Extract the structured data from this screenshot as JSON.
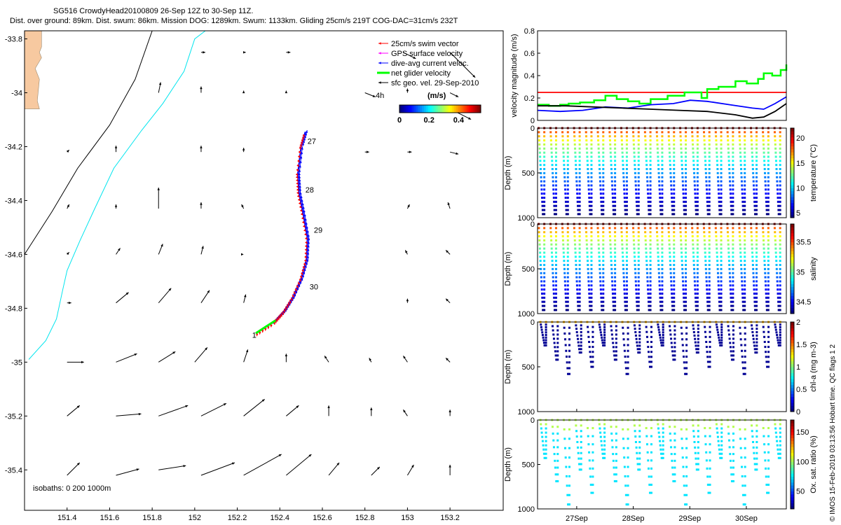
{
  "header": {
    "title_line1": "SG516 CrowdyHead20100809 26-Sep 12Z to 30-Sep 11Z.",
    "title_line2": "Dist. over ground: 89km. Dist. swum: 86km. Mission DOG: 1289km. Swum: 1133km. Gliding 25cm/s 219T COG-DAC=31cm/s 232T"
  },
  "credit": "© IMOS 15-Feb-2019 03:13:56 Hobart time. QC flags 1 2",
  "colors": {
    "land": "#f7c9a0",
    "isobath200": "#00e5ee",
    "isobath1000": "#000000",
    "swim": "#ff0000",
    "gps": "#ff00ff",
    "dac": "#0000ff",
    "net": "#00ff00",
    "geo": "#000000",
    "speed_threshold": "#ff0000"
  },
  "chart_data": [
    {
      "type": "scatter",
      "title": "",
      "xlabel": "",
      "ylabel": "",
      "xlim": [
        151.2,
        153.45
      ],
      "ylim": [
        -35.55,
        -33.77
      ],
      "xticks": [
        "151.4",
        "151.6",
        "151.8",
        "152",
        "152.2",
        "152.4",
        "152.6",
        "152.8",
        "153",
        "153.2"
      ],
      "yticks": [
        "-33.8",
        "-34",
        "-34.2",
        "-34.4",
        "-34.6",
        "-34.8",
        "-35",
        "-35.2",
        "-35.4"
      ],
      "legend": [
        {
          "label": "25cm/s swim vector",
          "color": "#ff0000"
        },
        {
          "label": "GPS surface velocity",
          "color": "#ff00ff"
        },
        {
          "label": "dive-avg current veloc.",
          "color": "#0000ff"
        },
        {
          "label": "net glider velocity",
          "color": "#00ff00"
        },
        {
          "label": "sfc geo. vel. 29-Sep-2010",
          "color": "#000000"
        }
      ],
      "colorbar": {
        "label": "(m/s)",
        "ticks": [
          "0",
          "0.2",
          "0.4"
        ],
        "range": [
          0,
          0.55
        ]
      },
      "isobath_note": "isobaths: 0   200  1000m",
      "time_label": "4h",
      "track_day_labels": [
        {
          "text": "1",
          "lon": 152.27,
          "lat": -34.91
        },
        {
          "text": "27",
          "lon": 152.53,
          "lat": -34.19
        },
        {
          "text": "28",
          "lon": 152.52,
          "lat": -34.37
        },
        {
          "text": "29",
          "lon": 152.56,
          "lat": -34.52
        },
        {
          "text": "30",
          "lon": 152.54,
          "lat": -34.73
        }
      ],
      "track": [
        [
          152.3,
          -34.885
        ],
        [
          152.38,
          -34.845
        ],
        [
          152.42,
          -34.81
        ],
        [
          152.46,
          -34.76
        ],
        [
          152.5,
          -34.69
        ],
        [
          152.525,
          -34.62
        ],
        [
          152.53,
          -34.54
        ],
        [
          152.51,
          -34.45
        ],
        [
          152.49,
          -34.37
        ],
        [
          152.485,
          -34.3
        ],
        [
          152.5,
          -34.2
        ],
        [
          152.52,
          -34.145
        ]
      ],
      "coast": [
        [
          151.2,
          -33.77
        ],
        [
          151.28,
          -33.77
        ],
        [
          151.28,
          -33.83
        ],
        [
          151.27,
          -33.85
        ],
        [
          151.28,
          -33.87
        ],
        [
          151.25,
          -33.91
        ],
        [
          151.27,
          -33.95
        ],
        [
          151.26,
          -34.03
        ],
        [
          151.27,
          -34.06
        ],
        [
          151.2,
          -34.06
        ]
      ],
      "isobath_200": [
        [
          152.05,
          -33.77
        ],
        [
          152.0,
          -33.8
        ],
        [
          151.95,
          -33.92
        ],
        [
          151.85,
          -34.04
        ],
        [
          151.75,
          -34.14
        ],
        [
          151.62,
          -34.28
        ],
        [
          151.53,
          -34.43
        ],
        [
          151.46,
          -34.55
        ],
        [
          151.4,
          -34.66
        ],
        [
          151.38,
          -34.73
        ],
        [
          151.35,
          -34.84
        ],
        [
          151.3,
          -34.92
        ],
        [
          151.22,
          -34.99
        ]
      ],
      "isobath_1000": [
        [
          151.8,
          -33.77
        ],
        [
          151.72,
          -33.95
        ],
        [
          151.6,
          -34.12
        ],
        [
          151.45,
          -34.28
        ],
        [
          151.33,
          -34.44
        ],
        [
          151.2,
          -34.6
        ]
      ],
      "geo_vectors": [
        {
          "lon": 152.98,
          "lat": -33.85,
          "u": 0.06,
          "v": -0.03
        },
        {
          "lon": 153.2,
          "lat": -33.85,
          "u": 0.12,
          "v": -0.12
        },
        {
          "lon": 153.2,
          "lat": -34.06,
          "u": 0.1,
          "v": -0.05
        },
        {
          "lon": 152.8,
          "lat": -34.0,
          "u": 0.05,
          "v": -0.02
        },
        {
          "lon": 151.83,
          "lat": -34.0,
          "u": 0.01,
          "v": 0.05
        },
        {
          "lon": 151.83,
          "lat": -34.43,
          "u": 0.0,
          "v": 0.1
        },
        {
          "lon": 151.63,
          "lat": -34.78,
          "u": 0.06,
          "v": 0.05
        },
        {
          "lon": 151.83,
          "lat": -34.78,
          "u": 0.06,
          "v": 0.07
        },
        {
          "lon": 152.03,
          "lat": -34.78,
          "u": 0.04,
          "v": 0.06
        },
        {
          "lon": 151.83,
          "lat": -35.0,
          "u": 0.08,
          "v": 0.05
        },
        {
          "lon": 151.83,
          "lat": -34.6,
          "u": 0.02,
          "v": 0.05
        },
        {
          "lon": 151.63,
          "lat": -35.0,
          "u": 0.1,
          "v": 0.04
        },
        {
          "lon": 152.0,
          "lat": -35.0,
          "u": 0.06,
          "v": 0.07
        },
        {
          "lon": 151.63,
          "lat": -35.2,
          "u": 0.12,
          "v": 0.01
        },
        {
          "lon": 151.83,
          "lat": -35.2,
          "u": 0.14,
          "v": 0.05
        },
        {
          "lon": 151.83,
          "lat": -35.4,
          "u": 0.13,
          "v": 0.02
        },
        {
          "lon": 151.4,
          "lat": -35.0,
          "u": 0.08,
          "v": 0.0
        },
        {
          "lon": 151.4,
          "lat": -35.2,
          "u": 0.06,
          "v": 0.05
        },
        {
          "lon": 151.4,
          "lat": -35.42,
          "u": 0.06,
          "v": 0.06
        },
        {
          "lon": 151.63,
          "lat": -35.42,
          "u": 0.11,
          "v": 0.03
        },
        {
          "lon": 152.03,
          "lat": -35.42,
          "u": 0.16,
          "v": 0.06
        },
        {
          "lon": 152.23,
          "lat": -35.42,
          "u": 0.18,
          "v": 0.1
        },
        {
          "lon": 152.43,
          "lat": -35.42,
          "u": 0.12,
          "v": 0.1
        },
        {
          "lon": 152.63,
          "lat": -35.42,
          "u": 0.05,
          "v": 0.06
        },
        {
          "lon": 152.83,
          "lat": -35.42,
          "u": 0.04,
          "v": 0.04
        },
        {
          "lon": 153.0,
          "lat": -35.42,
          "u": 0.03,
          "v": 0.05
        },
        {
          "lon": 153.2,
          "lat": -35.42,
          "u": 0.0,
          "v": 0.05
        },
        {
          "lon": 152.03,
          "lat": -35.2,
          "u": 0.12,
          "v": 0.06
        },
        {
          "lon": 152.23,
          "lat": -35.2,
          "u": 0.1,
          "v": 0.08
        },
        {
          "lon": 152.43,
          "lat": -35.2,
          "u": 0.06,
          "v": 0.05
        },
        {
          "lon": 152.63,
          "lat": -35.2,
          "u": 0.0,
          "v": 0.05
        },
        {
          "lon": 152.83,
          "lat": -35.2,
          "u": 0.0,
          "v": 0.04
        },
        {
          "lon": 153.0,
          "lat": -35.2,
          "u": -0.02,
          "v": 0.03
        },
        {
          "lon": 153.2,
          "lat": -35.2,
          "u": 0.0,
          "v": 0.03
        },
        {
          "lon": 152.23,
          "lat": -35.0,
          "u": 0.02,
          "v": 0.06
        },
        {
          "lon": 152.43,
          "lat": -35.0,
          "u": 0.0,
          "v": 0.04
        },
        {
          "lon": 152.63,
          "lat": -35.0,
          "u": -0.02,
          "v": 0.03
        },
        {
          "lon": 152.83,
          "lat": -35.0,
          "u": -0.01,
          "v": 0.02
        },
        {
          "lon": 153.0,
          "lat": -35.0,
          "u": -0.02,
          "v": 0.03
        },
        {
          "lon": 153.2,
          "lat": -35.0,
          "u": -0.02,
          "v": 0.02
        },
        {
          "lon": 152.23,
          "lat": -34.78,
          "u": 0.01,
          "v": 0.04
        },
        {
          "lon": 153.0,
          "lat": -34.78,
          "u": 0.0,
          "v": 0.02
        },
        {
          "lon": 153.2,
          "lat": -34.78,
          "u": -0.02,
          "v": 0.02
        },
        {
          "lon": 152.03,
          "lat": -34.6,
          "u": 0.01,
          "v": 0.04
        },
        {
          "lon": 152.23,
          "lat": -34.6,
          "u": 0.0,
          "v": 0.0
        },
        {
          "lon": 153.0,
          "lat": -34.6,
          "u": -0.01,
          "v": 0.02
        },
        {
          "lon": 153.2,
          "lat": -34.6,
          "u": -0.02,
          "v": 0.02
        },
        {
          "lon": 151.63,
          "lat": -34.6,
          "u": 0.02,
          "v": 0.03
        },
        {
          "lon": 152.03,
          "lat": -34.43,
          "u": 0.0,
          "v": 0.03
        },
        {
          "lon": 152.23,
          "lat": -34.43,
          "u": -0.01,
          "v": 0.02
        },
        {
          "lon": 153.0,
          "lat": -34.43,
          "u": 0.01,
          "v": 0.02
        },
        {
          "lon": 153.2,
          "lat": -34.43,
          "u": -0.01,
          "v": 0.03
        },
        {
          "lon": 151.63,
          "lat": -34.43,
          "u": 0.0,
          "v": 0.02
        },
        {
          "lon": 152.03,
          "lat": -34.22,
          "u": 0.0,
          "v": 0.03
        },
        {
          "lon": 152.23,
          "lat": -34.22,
          "u": 0.0,
          "v": 0.02
        },
        {
          "lon": 152.8,
          "lat": -34.22,
          "u": 0.02,
          "v": 0.0
        },
        {
          "lon": 153.0,
          "lat": -34.22,
          "u": 0.02,
          "v": 0.0
        },
        {
          "lon": 153.2,
          "lat": -34.22,
          "u": 0.04,
          "v": -0.01
        },
        {
          "lon": 151.63,
          "lat": -34.22,
          "u": 0.0,
          "v": 0.03
        },
        {
          "lon": 152.03,
          "lat": -34.0,
          "u": 0.0,
          "v": 0.03
        },
        {
          "lon": 152.23,
          "lat": -34.0,
          "u": 0.0,
          "v": 0.01
        },
        {
          "lon": 153.0,
          "lat": -34.0,
          "u": 0.0,
          "v": 0.02
        },
        {
          "lon": 152.03,
          "lat": -33.85,
          "u": 0.02,
          "v": 0.0
        },
        {
          "lon": 152.23,
          "lat": -33.85,
          "u": 0.01,
          "v": 0.0
        },
        {
          "lon": 152.43,
          "lat": -33.85,
          "u": 0.02,
          "v": 0.0
        },
        {
          "lon": 152.43,
          "lat": -34.0,
          "u": 0.0,
          "v": 0.01
        },
        {
          "lon": 151.4,
          "lat": -34.22,
          "u": 0.01,
          "v": 0.01
        },
        {
          "lon": 151.4,
          "lat": -34.43,
          "u": 0.01,
          "v": 0.02
        },
        {
          "lon": 151.4,
          "lat": -34.6,
          "u": 0.01,
          "v": 0.01
        },
        {
          "lon": 151.4,
          "lat": -34.78,
          "u": 0.02,
          "v": 0.0
        },
        {
          "lon": 153.2,
          "lat": -34.0,
          "u": 0.04,
          "v": -0.02
        }
      ]
    },
    {
      "type": "line",
      "title": "",
      "ylabel": "velocity magnitude (m/s)",
      "xlim": [
        0,
        4.4
      ],
      "ylim": [
        0,
        0.8
      ],
      "yticks": [
        "0",
        "0.2",
        "0.4",
        "0.6",
        "0.8"
      ],
      "series": [
        {
          "color": "#ff0000",
          "x": [
            0,
            4.4
          ],
          "y": [
            0.25,
            0.25
          ]
        },
        {
          "color": "#00ff00",
          "x": [
            0,
            0.2,
            0.4,
            0.55,
            0.75,
            1.0,
            1.2,
            1.4,
            1.6,
            1.8,
            2.0,
            2.3,
            2.6,
            2.9,
            3.0,
            3.2,
            3.5,
            3.7,
            3.9,
            4.0,
            4.15,
            4.3,
            4.4
          ],
          "y": [
            0.14,
            0.13,
            0.14,
            0.15,
            0.16,
            0.18,
            0.22,
            0.19,
            0.17,
            0.15,
            0.19,
            0.22,
            0.25,
            0.2,
            0.28,
            0.3,
            0.35,
            0.33,
            0.37,
            0.42,
            0.4,
            0.45,
            0.5
          ]
        },
        {
          "color": "#0000ff",
          "x": [
            0,
            0.4,
            0.8,
            1.2,
            1.6,
            2.0,
            2.4,
            2.7,
            3.0,
            3.4,
            3.8,
            4.0,
            4.2,
            4.4
          ],
          "y": [
            0.09,
            0.08,
            0.09,
            0.12,
            0.11,
            0.14,
            0.15,
            0.18,
            0.17,
            0.14,
            0.11,
            0.1,
            0.15,
            0.21
          ],
          "symbol": "x"
        },
        {
          "color": "#000000",
          "x": [
            0,
            0.5,
            1.0,
            1.5,
            2.0,
            2.5,
            3.0,
            3.5,
            3.8,
            4.0,
            4.2,
            4.4
          ],
          "y": [
            0.13,
            0.13,
            0.12,
            0.11,
            0.1,
            0.09,
            0.08,
            0.05,
            0.02,
            0.03,
            0.08,
            0.15
          ]
        }
      ]
    },
    {
      "type": "scatter",
      "ylabel": "Depth (m)",
      "yticks": [
        "0",
        "500",
        "1000"
      ],
      "colorbar": {
        "label": "temperature (°C)",
        "ticks": [
          "5",
          "10",
          "15",
          "20"
        ],
        "range": [
          4,
          22
        ]
      },
      "profiles": [
        {
          "start": 0.02,
          "count": 21,
          "cycle": 0.205,
          "max_depth": 960,
          "min_depth": 0,
          "regular": true
        }
      ]
    },
    {
      "type": "scatter",
      "ylabel": "Depth (m)",
      "yticks": [
        "0",
        "500",
        "1000"
      ],
      "colorbar": {
        "label": "salinity",
        "ticks": [
          "34.5",
          "35",
          "35.5"
        ],
        "range": [
          34.3,
          35.8
        ]
      },
      "profiles": [
        {
          "start": 0.02,
          "count": 21,
          "cycle": 0.205,
          "max_depth": 960,
          "min_depth": 0,
          "regular": true
        }
      ]
    },
    {
      "type": "scatter",
      "ylabel": "Depth (m)",
      "yticks": [
        "0",
        "500",
        "1000"
      ],
      "xticks": [
        "27Sep",
        "28Sep",
        "29Sep",
        "30Sep"
      ],
      "colorbar": {
        "label": "chl-a (mg m-3)",
        "ticks": [
          "0",
          "0.5",
          "1",
          "1.5",
          "2"
        ],
        "range": [
          0,
          2
        ]
      },
      "profiles": [
        {
          "start": 0.05,
          "count": 21,
          "cycle": 0.205,
          "max_depth": 580,
          "min_depth": 0,
          "regular": false
        }
      ]
    },
    {
      "type": "scatter",
      "ylabel": "Depth (m)",
      "yticks": [
        "0",
        "500",
        "1000"
      ],
      "xticks": [
        "27Sep",
        "28Sep",
        "29Sep",
        "30Sep"
      ],
      "colorbar": {
        "label": "Ox. sat. ratio (%)",
        "ticks": [
          "50",
          "100",
          "150"
        ],
        "range": [
          20,
          170
        ]
      },
      "profiles": [
        {
          "start": 0.05,
          "count": 21,
          "cycle": 0.205,
          "max_depth": 950,
          "min_depth": 0,
          "regular": false
        }
      ]
    }
  ]
}
